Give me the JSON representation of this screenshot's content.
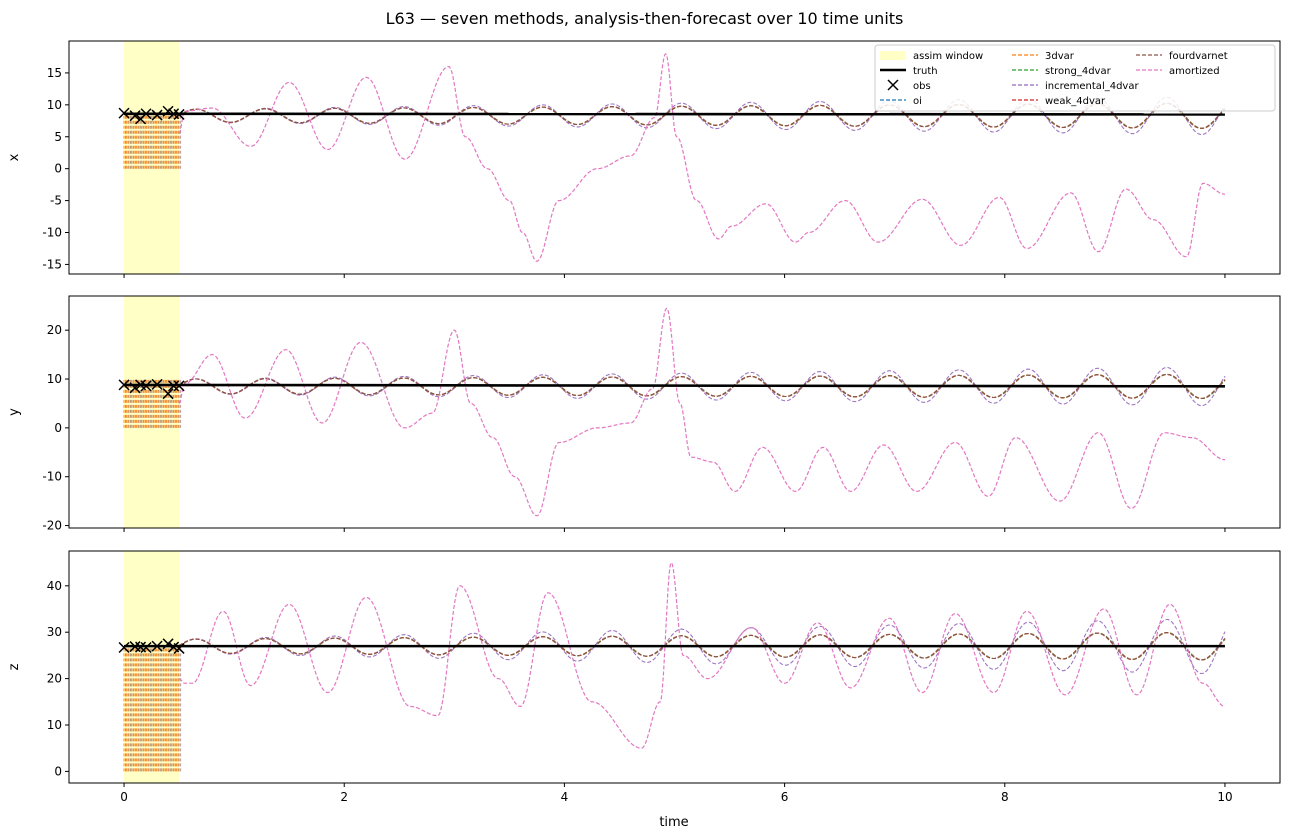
{
  "figure": {
    "title": "L63 — seven methods, analysis-then-forecast over 10 time units",
    "xlabel": "time"
  },
  "legend": {
    "placement": "top-right of top panel",
    "items": [
      {
        "label": "assim window",
        "kind": "patch",
        "color": "#ffffc6"
      },
      {
        "label": "truth",
        "kind": "line",
        "color": "#000000"
      },
      {
        "label": "obs",
        "kind": "marker",
        "color": "#000000"
      },
      {
        "label": "oi",
        "kind": "dashed",
        "color": "#1f77b4"
      },
      {
        "label": "3dvar",
        "kind": "dashed",
        "color": "#ff7f0e"
      },
      {
        "label": "strong_4dvar",
        "kind": "dashed",
        "color": "#2ca02c"
      },
      {
        "label": "incremental_4dvar",
        "kind": "dashed",
        "color": "#9467bd"
      },
      {
        "label": "weak_4dvar",
        "kind": "dashed",
        "color": "#d62728"
      },
      {
        "label": "fourdvarnet",
        "kind": "dashed",
        "color": "#8c564b"
      },
      {
        "label": "amortized",
        "kind": "dashed",
        "color": "#e377c2"
      }
    ]
  },
  "chart_data": [
    {
      "type": "line",
      "panel": "x",
      "ylabel": "x",
      "xlim": [
        -0.5,
        10.5
      ],
      "ylim": [
        -16.5,
        20
      ],
      "xticks": [
        0,
        2,
        4,
        6,
        8,
        10
      ],
      "yticks": [
        -15,
        -10,
        -5,
        0,
        5,
        10,
        15
      ],
      "assim_window": [
        0,
        0.5
      ],
      "truth": {
        "start": 8.6,
        "end": 8.5
      },
      "obs": {
        "t": [
          0,
          0.1,
          0.15,
          0.2,
          0.3,
          0.4,
          0.45,
          0.5
        ],
        "v": [
          8.7,
          8.3,
          7.8,
          8.6,
          8.4,
          9.0,
          8.6,
          8.5
        ]
      },
      "spinup_range": [
        0,
        8.7
      ],
      "methods_oscillation": {
        "center": 8.3,
        "amplitude_start": 1.0,
        "amplitude_end": 2.0,
        "period": 0.63
      },
      "incremental_4dvar_amplitude_end": 3.0,
      "amortized": {
        "t": [
          0.5,
          0.55,
          0.8,
          1.15,
          1.5,
          1.85,
          2.2,
          2.55,
          2.95,
          3.1,
          3.3,
          3.5,
          3.62,
          3.75,
          3.95,
          4.3,
          4.6,
          4.82,
          4.92,
          5.02,
          5.2,
          5.4,
          5.52,
          5.83,
          6.1,
          6.22,
          6.55,
          6.85,
          7.25,
          7.6,
          7.95,
          8.2,
          8.6,
          8.85,
          9.1,
          9.35,
          9.65,
          9.8,
          10.0
        ],
        "v": [
          5.5,
          9.0,
          9.5,
          3.5,
          13.5,
          3.0,
          14.3,
          1.5,
          16.0,
          5.0,
          0.0,
          -5.0,
          -10.0,
          -14.5,
          -5.0,
          0.0,
          2.0,
          8.0,
          18.0,
          5.0,
          -5.0,
          -11.0,
          -9.0,
          -5.5,
          -11.5,
          -10.0,
          -5.0,
          -11.5,
          -4.8,
          -12.0,
          -4.5,
          -12.5,
          -3.8,
          -13.0,
          -3.2,
          -8.0,
          -13.8,
          -2.3,
          -4.0
        ]
      }
    },
    {
      "type": "line",
      "panel": "y",
      "ylabel": "y",
      "xlim": [
        -0.5,
        10.5
      ],
      "ylim": [
        -20.5,
        27
      ],
      "xticks": [
        0,
        2,
        4,
        6,
        8,
        10
      ],
      "yticks": [
        -20,
        -10,
        0,
        10,
        20
      ],
      "assim_window": [
        0,
        0.5
      ],
      "truth": {
        "start": 8.8,
        "end": 8.5
      },
      "obs": {
        "t": [
          0,
          0.1,
          0.15,
          0.2,
          0.3,
          0.4,
          0.45,
          0.5
        ],
        "v": [
          8.8,
          8.2,
          8.8,
          8.6,
          8.9,
          7.0,
          8.6,
          8.6
        ]
      },
      "spinup_range": [
        0,
        10.0
      ],
      "methods_oscillation": {
        "center": 8.5,
        "amplitude_start": 1.5,
        "amplitude_end": 2.5,
        "period": 0.63
      },
      "incremental_4dvar_amplitude_end": 4.0,
      "amortized": {
        "t": [
          0.5,
          0.55,
          0.8,
          1.1,
          1.47,
          1.8,
          2.15,
          2.55,
          2.8,
          3.0,
          3.15,
          3.35,
          3.55,
          3.75,
          3.95,
          4.3,
          4.6,
          4.8,
          4.93,
          5.05,
          5.15,
          5.35,
          5.55,
          5.8,
          6.1,
          6.35,
          6.6,
          6.9,
          7.2,
          7.55,
          7.85,
          8.1,
          8.5,
          8.85,
          9.15,
          9.45,
          9.7,
          10.0
        ],
        "v": [
          5.0,
          9.0,
          15.0,
          2.0,
          16.0,
          1.0,
          17.5,
          0.0,
          3.0,
          20.0,
          5.0,
          -2.0,
          -10.0,
          -18.0,
          -3.0,
          0.0,
          1.0,
          8.0,
          24.5,
          5.0,
          -6.0,
          -7.0,
          -13.0,
          -4.0,
          -13.0,
          -4.0,
          -13.0,
          -3.5,
          -13.0,
          -3.0,
          -14.0,
          -2.0,
          -15.0,
          -1.0,
          -16.5,
          -1.0,
          -2.0,
          -6.5
        ]
      }
    },
    {
      "type": "line",
      "panel": "z",
      "ylabel": "z",
      "xlim": [
        -0.5,
        10.5
      ],
      "ylim": [
        -2.5,
        47.5
      ],
      "xticks": [
        0,
        2,
        4,
        6,
        8,
        10
      ],
      "yticks": [
        0,
        10,
        20,
        30,
        40
      ],
      "assim_window": [
        0,
        0.5
      ],
      "truth": {
        "start": 27.0,
        "end": 27.0
      },
      "obs": {
        "t": [
          0,
          0.1,
          0.15,
          0.2,
          0.3,
          0.4,
          0.45,
          0.5
        ],
        "v": [
          26.7,
          26.9,
          26.8,
          26.7,
          27.0,
          27.5,
          26.8,
          26.5
        ]
      },
      "spinup_range": [
        0,
        26.7
      ],
      "methods_oscillation": {
        "center": 27.0,
        "amplitude_start": 1.5,
        "amplitude_end": 3.0,
        "period": 0.63
      },
      "incremental_4dvar_amplitude_end": 6.0,
      "amortized": {
        "t": [
          0.5,
          0.55,
          0.62,
          0.9,
          1.15,
          1.5,
          1.85,
          2.2,
          2.6,
          2.85,
          3.05,
          3.4,
          3.6,
          3.85,
          4.25,
          4.7,
          4.87,
          4.97,
          5.08,
          5.3,
          5.7,
          6.0,
          6.3,
          6.6,
          6.95,
          7.25,
          7.55,
          7.9,
          8.2,
          8.55,
          8.9,
          9.2,
          9.5,
          9.8,
          10.0
        ],
        "v": [
          20.0,
          19.0,
          19.0,
          34.5,
          18.5,
          36.0,
          17.0,
          37.5,
          14.0,
          12.0,
          40.0,
          20.0,
          14.0,
          38.5,
          15.0,
          5.0,
          15.0,
          45.0,
          25.0,
          20.0,
          31.0,
          19.0,
          32.0,
          18.0,
          33.0,
          17.0,
          34.0,
          17.0,
          34.5,
          16.5,
          35.0,
          16.5,
          36.0,
          19.0,
          14.0
        ]
      }
    }
  ]
}
